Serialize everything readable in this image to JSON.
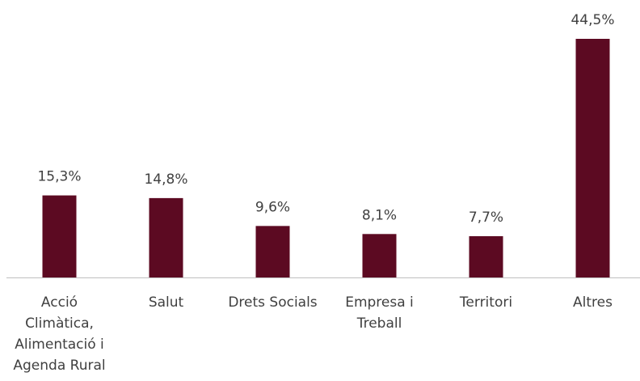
{
  "chart_data": {
    "type": "bar",
    "categories": [
      "Acció\nClimàtica,\nAlimentació i\nAgenda Rural",
      "Salut",
      "Drets Socials",
      "Empresa i\nTreball",
      "Territori",
      "Altres"
    ],
    "values": [
      15.3,
      14.8,
      9.6,
      8.1,
      7.7,
      44.5
    ],
    "value_labels": [
      "15,3%",
      "14,8%",
      "9,6%",
      "8,1%",
      "7,7%",
      "44,5%"
    ],
    "color": "#5c0a22"
  }
}
